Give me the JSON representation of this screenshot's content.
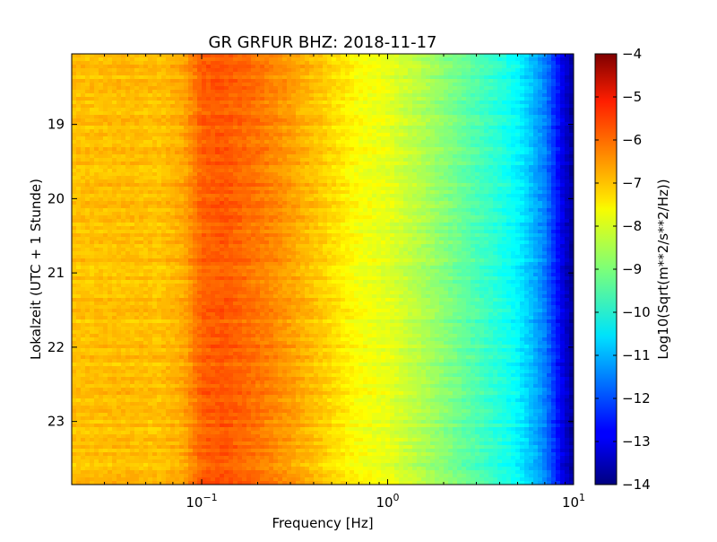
{
  "chart_data": {
    "type": "heatmap",
    "title": "GR GRFUR BHZ: 2018-11-17",
    "xlabel": "Frequency [Hz]",
    "ylabel": "Lokalzeit (UTC + 1 Stunde)",
    "x_scale": "log",
    "xlim": [
      0.02,
      10
    ],
    "ylim_hours": [
      18.05,
      23.85
    ],
    "x_ticks": [
      {
        "value": 0.1,
        "base": "10",
        "exp": "−1"
      },
      {
        "value": 1,
        "base": "10",
        "exp": "0"
      },
      {
        "value": 10,
        "base": "10",
        "exp": "1"
      }
    ],
    "y_ticks": [
      {
        "value": 19,
        "label": "19"
      },
      {
        "value": 20,
        "label": "20"
      },
      {
        "value": 21,
        "label": "21"
      },
      {
        "value": 22,
        "label": "22"
      },
      {
        "value": 23,
        "label": "23"
      }
    ],
    "colorbar": {
      "label": "Log10(Sqrt(m**2/s**2/Hz))",
      "range": [
        -14,
        -4
      ],
      "ticks": [
        "−4",
        "−5",
        "−6",
        "−7",
        "−8",
        "−9",
        "−10",
        "−11",
        "−12",
        "−13",
        "−14"
      ],
      "colormap": "jet"
    },
    "spectrum_profile": {
      "frequency_hz": [
        0.02,
        0.04,
        0.06,
        0.08,
        0.1,
        0.13,
        0.2,
        0.3,
        0.5,
        0.7,
        1.0,
        1.5,
        2.0,
        3.0,
        4.0,
        5.0,
        6.0,
        7.0,
        8.0,
        9.0,
        10.0
      ],
      "psd_log10": [
        -7.15,
        -7.1,
        -7.15,
        -6.9,
        -6.2,
        -6.1,
        -6.4,
        -6.8,
        -7.4,
        -7.8,
        -8.0,
        -8.5,
        -8.9,
        -9.5,
        -9.9,
        -10.3,
        -10.9,
        -11.5,
        -12.4,
        -13.2,
        -13.8
      ]
    }
  }
}
